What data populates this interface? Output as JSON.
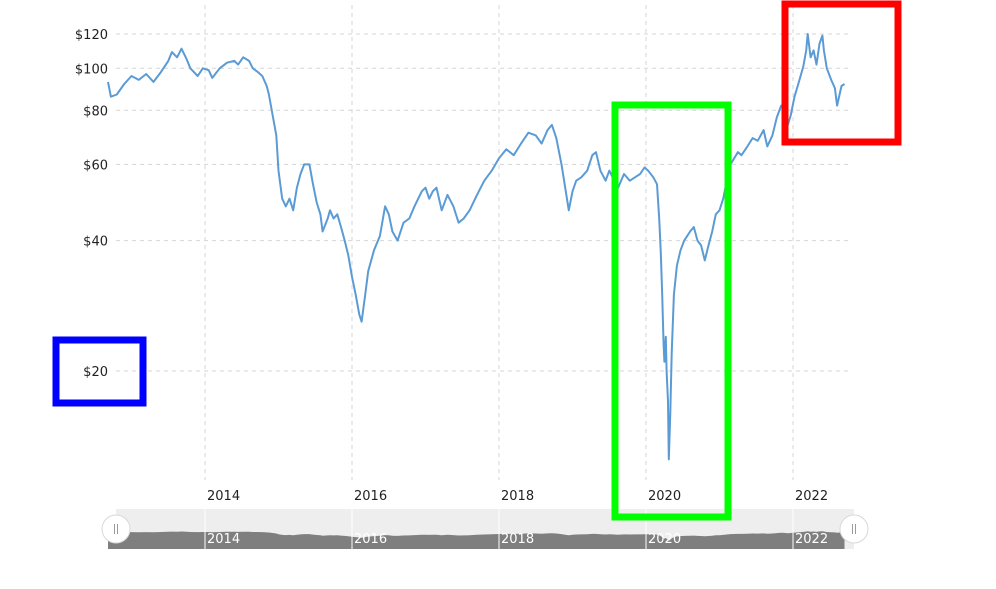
{
  "chart_data": {
    "type": "line",
    "title": "",
    "xlabel": "",
    "ylabel": "",
    "scale": "log",
    "grid": true,
    "ylim": [
      12,
      125
    ],
    "xlim": [
      2012.65,
      2022.7
    ],
    "yticks": [
      {
        "value": 20,
        "label": "$20"
      },
      {
        "value": 40,
        "label": "$40"
      },
      {
        "value": 60,
        "label": "$60"
      },
      {
        "value": 80,
        "label": "$80"
      },
      {
        "value": 100,
        "label": "$100"
      },
      {
        "value": 120,
        "label": "$120"
      }
    ],
    "xticks": [
      {
        "value": 2014,
        "label": "2014"
      },
      {
        "value": 2016,
        "label": "2016"
      },
      {
        "value": 2018,
        "label": "2018"
      },
      {
        "value": 2020,
        "label": "2020"
      },
      {
        "value": 2022,
        "label": "2022"
      }
    ],
    "line_color": "#5b9bd5",
    "series": [
      {
        "values": [
          [
            2012.68,
            93
          ],
          [
            2012.72,
            86
          ],
          [
            2012.8,
            87
          ],
          [
            2012.9,
            92
          ],
          [
            2013.0,
            96
          ],
          [
            2013.1,
            94
          ],
          [
            2013.2,
            97
          ],
          [
            2013.3,
            93
          ],
          [
            2013.4,
            98
          ],
          [
            2013.5,
            104
          ],
          [
            2013.55,
            109
          ],
          [
            2013.62,
            106
          ],
          [
            2013.68,
            111
          ],
          [
            2013.75,
            105
          ],
          [
            2013.8,
            100
          ],
          [
            2013.9,
            96
          ],
          [
            2013.97,
            100
          ],
          [
            2014.05,
            99
          ],
          [
            2014.1,
            95
          ],
          [
            2014.2,
            100
          ],
          [
            2014.3,
            103
          ],
          [
            2014.4,
            104
          ],
          [
            2014.45,
            102
          ],
          [
            2014.52,
            106
          ],
          [
            2014.6,
            104
          ],
          [
            2014.65,
            100
          ],
          [
            2014.72,
            98
          ],
          [
            2014.78,
            96
          ],
          [
            2014.84,
            91
          ],
          [
            2014.87,
            87
          ],
          [
            2014.92,
            78
          ],
          [
            2014.97,
            70
          ],
          [
            2015.0,
            58
          ],
          [
            2015.05,
            50
          ],
          [
            2015.1,
            48
          ],
          [
            2015.15,
            50
          ],
          [
            2015.2,
            47
          ],
          [
            2015.25,
            53
          ],
          [
            2015.3,
            57
          ],
          [
            2015.35,
            60
          ],
          [
            2015.42,
            60
          ],
          [
            2015.47,
            54
          ],
          [
            2015.52,
            49
          ],
          [
            2015.57,
            46
          ],
          [
            2015.6,
            42
          ],
          [
            2015.67,
            45
          ],
          [
            2015.7,
            47
          ],
          [
            2015.75,
            45
          ],
          [
            2015.8,
            46
          ],
          [
            2015.85,
            43
          ],
          [
            2015.9,
            40
          ],
          [
            2015.95,
            37
          ],
          [
            2016.0,
            33
          ],
          [
            2016.05,
            30
          ],
          [
            2016.1,
            27
          ],
          [
            2016.13,
            26
          ],
          [
            2016.18,
            30
          ],
          [
            2016.22,
            34
          ],
          [
            2016.3,
            38
          ],
          [
            2016.38,
            41
          ],
          [
            2016.45,
            48
          ],
          [
            2016.5,
            46
          ],
          [
            2016.55,
            42
          ],
          [
            2016.62,
            40
          ],
          [
            2016.7,
            44
          ],
          [
            2016.78,
            45
          ],
          [
            2016.85,
            48
          ],
          [
            2016.95,
            52
          ],
          [
            2017.0,
            53
          ],
          [
            2017.05,
            50
          ],
          [
            2017.1,
            52
          ],
          [
            2017.15,
            53
          ],
          [
            2017.22,
            47
          ],
          [
            2017.3,
            51
          ],
          [
            2017.38,
            48
          ],
          [
            2017.45,
            44
          ],
          [
            2017.52,
            45
          ],
          [
            2017.6,
            47
          ],
          [
            2017.7,
            51
          ],
          [
            2017.8,
            55
          ],
          [
            2017.9,
            58
          ],
          [
            2018.0,
            62
          ],
          [
            2018.1,
            65
          ],
          [
            2018.2,
            63
          ],
          [
            2018.3,
            67
          ],
          [
            2018.4,
            71
          ],
          [
            2018.5,
            70
          ],
          [
            2018.58,
            67
          ],
          [
            2018.66,
            72
          ],
          [
            2018.72,
            74
          ],
          [
            2018.78,
            69
          ],
          [
            2018.85,
            60
          ],
          [
            2018.9,
            53
          ],
          [
            2018.95,
            47
          ],
          [
            2019.0,
            52
          ],
          [
            2019.05,
            55
          ],
          [
            2019.12,
            56
          ],
          [
            2019.2,
            58
          ],
          [
            2019.27,
            63
          ],
          [
            2019.32,
            64
          ],
          [
            2019.38,
            58
          ],
          [
            2019.45,
            55
          ],
          [
            2019.5,
            58
          ],
          [
            2019.57,
            55
          ],
          [
            2019.62,
            53
          ],
          [
            2019.7,
            57
          ],
          [
            2019.78,
            55
          ],
          [
            2019.85,
            56
          ],
          [
            2019.92,
            57
          ],
          [
            2019.98,
            59
          ],
          [
            2020.03,
            58
          ],
          [
            2020.1,
            56
          ],
          [
            2020.15,
            54
          ],
          [
            2020.18,
            45
          ],
          [
            2020.2,
            38
          ],
          [
            2020.22,
            30
          ],
          [
            2020.24,
            23
          ],
          [
            2020.25,
            21
          ],
          [
            2020.27,
            24
          ],
          [
            2020.28,
            20
          ],
          [
            2020.3,
            17
          ],
          [
            2020.31,
            12.5
          ],
          [
            2020.33,
            16
          ],
          [
            2020.35,
            22
          ],
          [
            2020.38,
            30
          ],
          [
            2020.42,
            35
          ],
          [
            2020.47,
            38
          ],
          [
            2020.52,
            40
          ],
          [
            2020.6,
            42
          ],
          [
            2020.65,
            43
          ],
          [
            2020.7,
            40
          ],
          [
            2020.75,
            39
          ],
          [
            2020.8,
            36
          ],
          [
            2020.85,
            39
          ],
          [
            2020.9,
            42
          ],
          [
            2020.95,
            46
          ],
          [
            2021.0,
            47
          ],
          [
            2021.05,
            50
          ],
          [
            2021.1,
            55
          ],
          [
            2021.15,
            60
          ],
          [
            2021.2,
            62
          ],
          [
            2021.25,
            64
          ],
          [
            2021.3,
            63
          ],
          [
            2021.38,
            66
          ],
          [
            2021.45,
            69
          ],
          [
            2021.52,
            68
          ],
          [
            2021.6,
            72
          ],
          [
            2021.65,
            66
          ],
          [
            2021.72,
            70
          ],
          [
            2021.78,
            77
          ],
          [
            2021.84,
            82
          ],
          [
            2021.88,
            80
          ],
          [
            2021.93,
            74
          ],
          [
            2021.97,
            78
          ],
          [
            2022.02,
            86
          ],
          [
            2022.08,
            93
          ],
          [
            2022.14,
            101
          ],
          [
            2022.18,
            110
          ],
          [
            2022.2,
            120
          ],
          [
            2022.24,
            106
          ],
          [
            2022.28,
            110
          ],
          [
            2022.32,
            102
          ],
          [
            2022.36,
            114
          ],
          [
            2022.4,
            119
          ],
          [
            2022.42,
            110
          ],
          [
            2022.46,
            100
          ],
          [
            2022.52,
            94
          ],
          [
            2022.57,
            90
          ],
          [
            2022.6,
            82
          ],
          [
            2022.62,
            85
          ],
          [
            2022.66,
            91
          ],
          [
            2022.7,
            92
          ]
        ]
      }
    ]
  },
  "navigator": {
    "labels": [
      "2014",
      "2016",
      "2018",
      "2020",
      "2022"
    ],
    "left_handle_icon": "grip-lines-icon",
    "right_handle_icon": "grip-lines-icon"
  },
  "highlights": [
    {
      "name": "green-highlight-box",
      "color": "#00ff00"
    },
    {
      "name": "red-highlight-box",
      "color": "#ff0000"
    },
    {
      "name": "blue-highlight-box",
      "color": "#0000ff"
    }
  ]
}
